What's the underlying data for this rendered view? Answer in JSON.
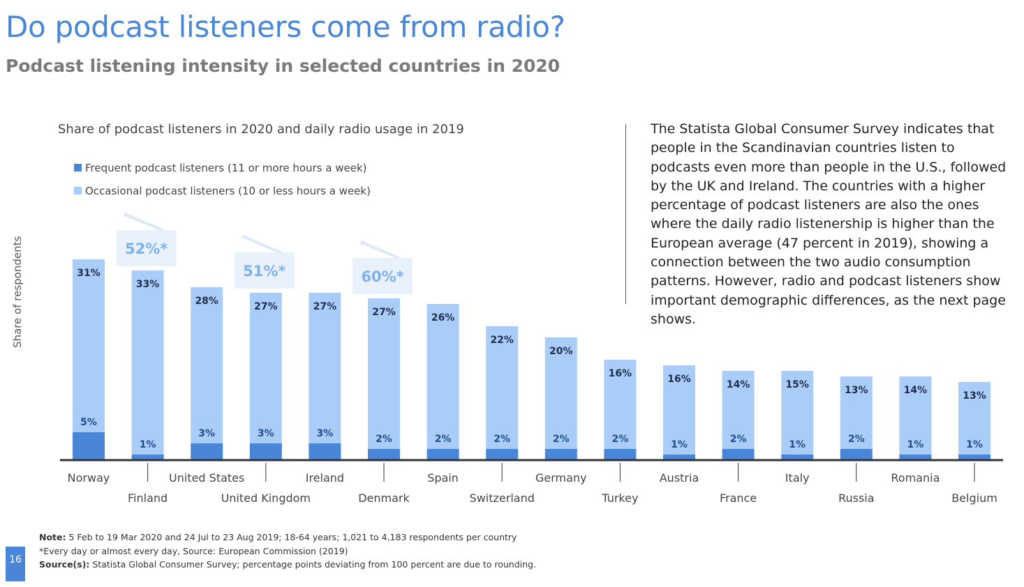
{
  "header": {
    "title": "Do podcast listeners come from radio?",
    "subtitle": "Podcast listening intensity in selected countries in 2020"
  },
  "chart_data": {
    "type": "bar",
    "stacked": true,
    "title": "Share of podcast listeners in 2020 and daily radio usage in 2019",
    "ylabel": "Share of respondents",
    "xlabel": "",
    "categories": [
      "Norway",
      "Finland",
      "United States",
      "United Kingdom",
      "Ireland",
      "Denmark",
      "Spain",
      "Switzerland",
      "Germany",
      "Turkey",
      "Austria",
      "France",
      "Italy",
      "Russia",
      "Romania",
      "Belgium"
    ],
    "series": [
      {
        "name": "Frequent podcast listeners (11 or more hours a week)",
        "color": "#4a86d8",
        "values": [
          5,
          1,
          3,
          3,
          3,
          2,
          2,
          2,
          2,
          2,
          1,
          2,
          1,
          2,
          1,
          1
        ],
        "labels": [
          "5%",
          "1%",
          "3%",
          "3%",
          "3%",
          "2%",
          "2%",
          "2%",
          "2%",
          "2%",
          "1%",
          "2%",
          "1%",
          "2%",
          "1%",
          "1%"
        ]
      },
      {
        "name": "Occasional podcast listeners (10 or less hours a week)",
        "color": "#a9cdf7",
        "values": [
          31,
          33,
          28,
          27,
          27,
          27,
          26,
          22,
          20,
          16,
          16,
          14,
          15,
          13,
          14,
          13
        ],
        "labels": [
          "31%",
          "33%",
          "28%",
          "27%",
          "27%",
          "27%",
          "26%",
          "22%",
          "20%",
          "16%",
          "16%",
          "14%",
          "15%",
          "13%",
          "14%",
          "13%"
        ]
      }
    ],
    "annotations": [
      {
        "category": "Finland",
        "text": "52%*"
      },
      {
        "category": "United Kingdom",
        "text": "51%*"
      },
      {
        "category": "Denmark",
        "text": "60%*"
      }
    ],
    "grid": false,
    "legend": "top-left"
  },
  "description": "The Statista Global Consumer Survey indicates that people in the Scandinavian countries listen to podcasts even more than people in the U.S., followed by the UK and Ireland. The countries with a higher percentage of podcast listeners are also the ones where the daily radio listenership is higher than the European average (47 percent in 2019), showing a connection between the two audio consumption patterns. However, radio and podcast listeners show important demographic differences, as the next page shows.",
  "footer": {
    "note_label": "Note:",
    "note_text": " 5 Feb to 19 Mar 2020 and 24 Jul to 23 Aug 2019; 18-64 years; 1,021 to 4,183 respondents per country",
    "asterisk_text": "*Every day or almost every day, Source: European Commission (2019)",
    "source_label": "Source(s):",
    "source_text": " Statista Global Consumer Survey; percentage points deviating from 100 percent are due to rounding."
  },
  "page_number": "16"
}
